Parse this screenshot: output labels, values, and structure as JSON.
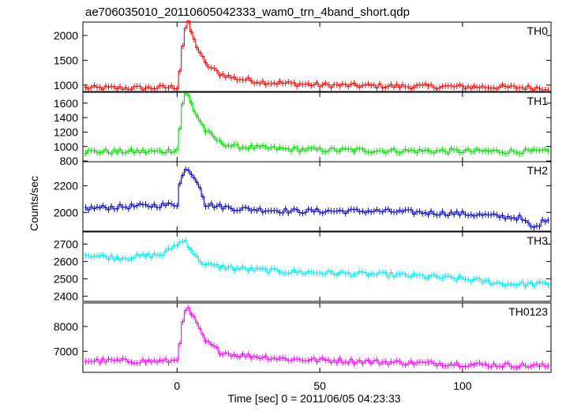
{
  "chart_data": {
    "type": "line",
    "title": "ae706035010_20110605042333_wam0_trn_4band_short.qdp",
    "xlabel": "Time [sec] 0 = 2011/06/05 04:23:33",
    "ylabel": "Counts/sec",
    "xlim": [
      -33,
      131
    ],
    "x_ticks": [
      0,
      50,
      100
    ],
    "grid": false,
    "panels": [
      {
        "name": "TH0",
        "color": "#ff0000",
        "ylim": [
          870,
          2270
        ],
        "y_ticks": [
          1000,
          1500,
          2000
        ],
        "points": [
          [
            -33,
            940
          ],
          [
            -10,
            940
          ],
          [
            0,
            960
          ],
          [
            1,
            1300
          ],
          [
            2,
            1800
          ],
          [
            3,
            2150
          ],
          [
            4,
            2250
          ],
          [
            6,
            1900
          ],
          [
            10,
            1420
          ],
          [
            15,
            1230
          ],
          [
            20,
            1140
          ],
          [
            30,
            1060
          ],
          [
            50,
            1000
          ],
          [
            80,
            975
          ],
          [
            110,
            960
          ],
          [
            130,
            940
          ]
        ]
      },
      {
        "name": "TH1",
        "color": "#00dd00",
        "ylim": [
          790,
          1750
        ],
        "y_ticks": [
          800,
          1000,
          1200,
          1400,
          1600
        ],
        "points": [
          [
            -33,
            930
          ],
          [
            -5,
            930
          ],
          [
            0,
            960
          ],
          [
            1,
            1250
          ],
          [
            2,
            1600
          ],
          [
            3,
            1720
          ],
          [
            4,
            1700
          ],
          [
            6,
            1500
          ],
          [
            10,
            1220
          ],
          [
            15,
            1060
          ],
          [
            20,
            1000
          ],
          [
            40,
            960
          ],
          [
            80,
            940
          ],
          [
            130,
            930
          ]
        ]
      },
      {
        "name": "TH2",
        "color": "#0000cc",
        "ylim": [
          1860,
          2380
        ],
        "y_ticks": [
          2000,
          2200
        ],
        "points": [
          [
            -33,
            2030
          ],
          [
            -10,
            2050
          ],
          [
            0,
            2060
          ],
          [
            1,
            2230
          ],
          [
            3,
            2320
          ],
          [
            5,
            2300
          ],
          [
            8,
            2200
          ],
          [
            10,
            2060
          ],
          [
            20,
            2030
          ],
          [
            40,
            2010
          ],
          [
            70,
            2010
          ],
          [
            100,
            1990
          ],
          [
            120,
            1960
          ],
          [
            125,
            1880
          ],
          [
            130,
            1960
          ]
        ]
      },
      {
        "name": "TH3",
        "color": "#00eeee",
        "ylim": [
          2370,
          2770
        ],
        "y_ticks": [
          2400,
          2500,
          2600,
          2700
        ],
        "points": [
          [
            -33,
            2640
          ],
          [
            -20,
            2620
          ],
          [
            -5,
            2640
          ],
          [
            0,
            2700
          ],
          [
            3,
            2720
          ],
          [
            7,
            2620
          ],
          [
            10,
            2580
          ],
          [
            20,
            2560
          ],
          [
            40,
            2540
          ],
          [
            60,
            2530
          ],
          [
            80,
            2520
          ],
          [
            100,
            2500
          ],
          [
            115,
            2470
          ],
          [
            130,
            2470
          ]
        ]
      },
      {
        "name": "TH0123",
        "color": "#ff00ff",
        "ylim": [
          6150,
          8950
        ],
        "y_ticks": [
          7000,
          8000
        ],
        "points": [
          [
            -33,
            6620
          ],
          [
            -10,
            6600
          ],
          [
            -2,
            6600
          ],
          [
            0,
            6700
          ],
          [
            1,
            7400
          ],
          [
            2,
            8100
          ],
          [
            3,
            8600
          ],
          [
            4,
            8700
          ],
          [
            6,
            8300
          ],
          [
            10,
            7400
          ],
          [
            15,
            7000
          ],
          [
            20,
            6860
          ],
          [
            40,
            6680
          ],
          [
            80,
            6540
          ],
          [
            110,
            6450
          ],
          [
            130,
            6400
          ]
        ]
      }
    ]
  }
}
